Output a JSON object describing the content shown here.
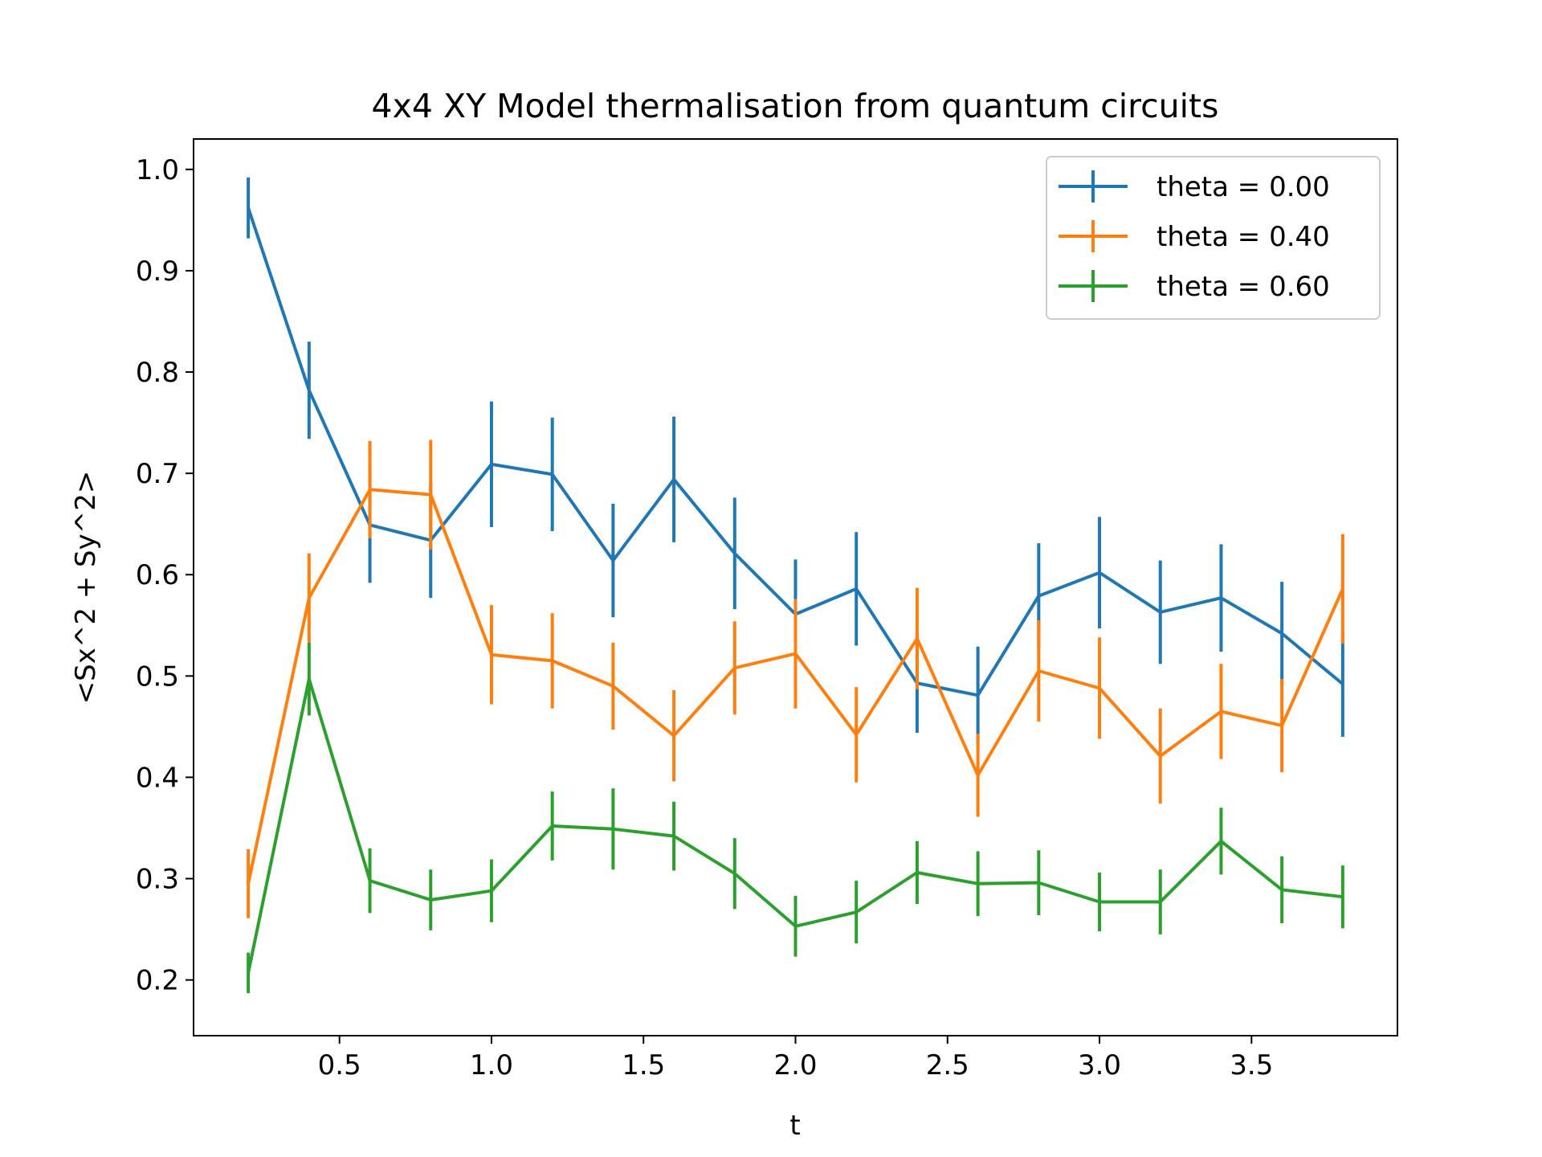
{
  "chart_data": {
    "type": "line",
    "title": "4x4 XY Model thermalisation from quantum circuits",
    "xlabel": "t",
    "ylabel": "<Sx^2 + Sy^2>",
    "xlim": [
      0.02,
      3.98
    ],
    "ylim": [
      0.145,
      1.03
    ],
    "x_ticks": [
      0.5,
      1.0,
      1.5,
      2.0,
      2.5,
      3.0,
      3.5
    ],
    "x_tick_labels": [
      "0.5",
      "1.0",
      "1.5",
      "2.0",
      "2.5",
      "3.0",
      "3.5"
    ],
    "y_ticks": [
      0.2,
      0.3,
      0.4,
      0.5,
      0.6,
      0.7,
      0.8,
      0.9,
      1.0
    ],
    "y_tick_labels": [
      "0.2",
      "0.3",
      "0.4",
      "0.5",
      "0.6",
      "0.7",
      "0.8",
      "0.9",
      "1.0"
    ],
    "grid": false,
    "legend_position": "top-right",
    "x": [
      0.2,
      0.4,
      0.6,
      0.8,
      1.0,
      1.2,
      1.4,
      1.6,
      1.8,
      2.0,
      2.2,
      2.4,
      2.6,
      2.8,
      3.0,
      3.2,
      3.4,
      3.6,
      3.8
    ],
    "series": [
      {
        "name": "theta = 0.00",
        "color": "#1f77b4",
        "values": [
          0.962,
          0.782,
          0.649,
          0.634,
          0.709,
          0.699,
          0.614,
          0.694,
          0.621,
          0.561,
          0.586,
          0.493,
          0.481,
          0.579,
          0.602,
          0.563,
          0.577,
          0.542,
          0.492
        ],
        "errors": [
          0.03,
          0.048,
          0.057,
          0.057,
          0.062,
          0.056,
          0.056,
          0.062,
          0.055,
          0.054,
          0.056,
          0.049,
          0.048,
          0.052,
          0.055,
          0.051,
          0.053,
          0.051,
          0.052
        ]
      },
      {
        "name": "theta = 0.40",
        "color": "#ff7f0e",
        "values": [
          0.295,
          0.577,
          0.684,
          0.679,
          0.521,
          0.515,
          0.49,
          0.441,
          0.508,
          0.522,
          0.442,
          0.537,
          0.402,
          0.505,
          0.488,
          0.421,
          0.465,
          0.451,
          0.586
        ],
        "errors": [
          0.034,
          0.044,
          0.048,
          0.054,
          0.049,
          0.047,
          0.043,
          0.045,
          0.046,
          0.054,
          0.047,
          0.05,
          0.041,
          0.05,
          0.05,
          0.047,
          0.047,
          0.046,
          0.054
        ]
      },
      {
        "name": "theta = 0.60",
        "color": "#2ca02c",
        "values": [
          0.207,
          0.497,
          0.298,
          0.279,
          0.288,
          0.352,
          0.349,
          0.342,
          0.305,
          0.253,
          0.267,
          0.306,
          0.295,
          0.296,
          0.277,
          0.277,
          0.337,
          0.289,
          0.282
        ],
        "errors": [
          0.02,
          0.036,
          0.032,
          0.03,
          0.031,
          0.034,
          0.04,
          0.034,
          0.035,
          0.03,
          0.031,
          0.031,
          0.032,
          0.032,
          0.029,
          0.032,
          0.033,
          0.033,
          0.031
        ]
      }
    ]
  }
}
